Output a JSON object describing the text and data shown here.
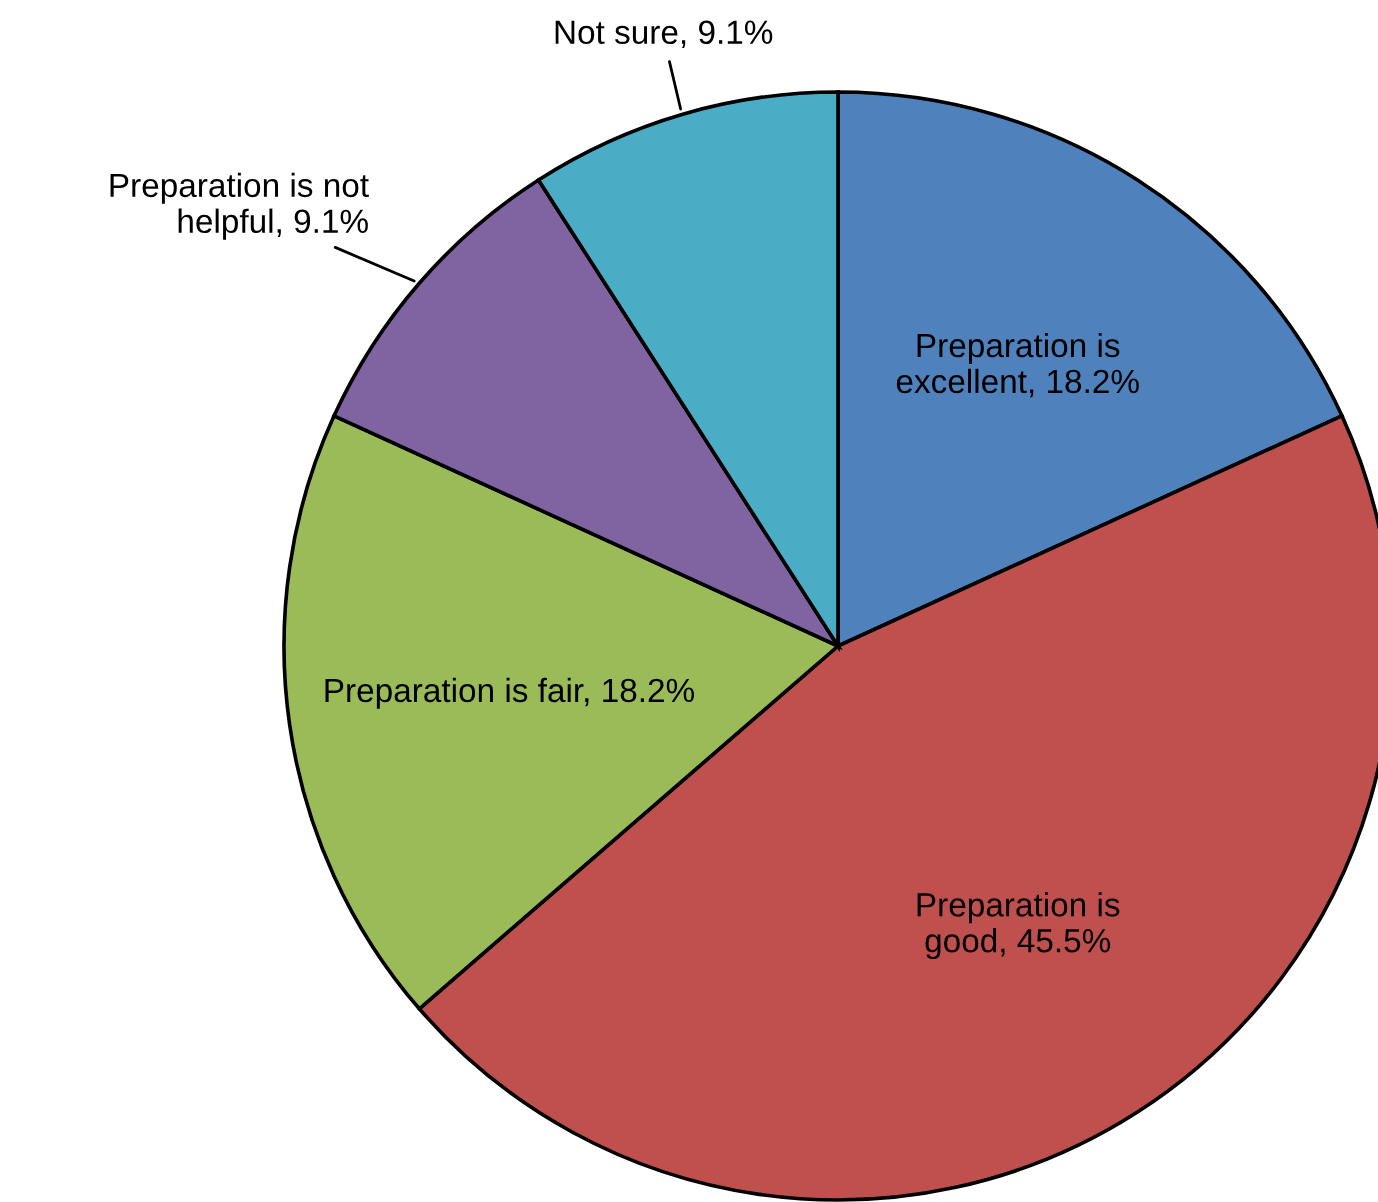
{
  "chart_data": {
    "type": "pie",
    "categories": [
      "Preparation is\nexcellent",
      "Preparation is\ngood",
      "Preparation is fair",
      "Preparation is not\nhelpful",
      "Not sure"
    ],
    "values": [
      18.2,
      45.5,
      18.2,
      9.1,
      9.1
    ],
    "value_labels": [
      "18.2%",
      "45.5%",
      "18.2%",
      "9.1%",
      "9.1%"
    ],
    "colors": [
      "#4f81bd",
      "#c0504d",
      "#9bbb59",
      "#8064a2",
      "#4bacc6"
    ],
    "legend": false
  }
}
